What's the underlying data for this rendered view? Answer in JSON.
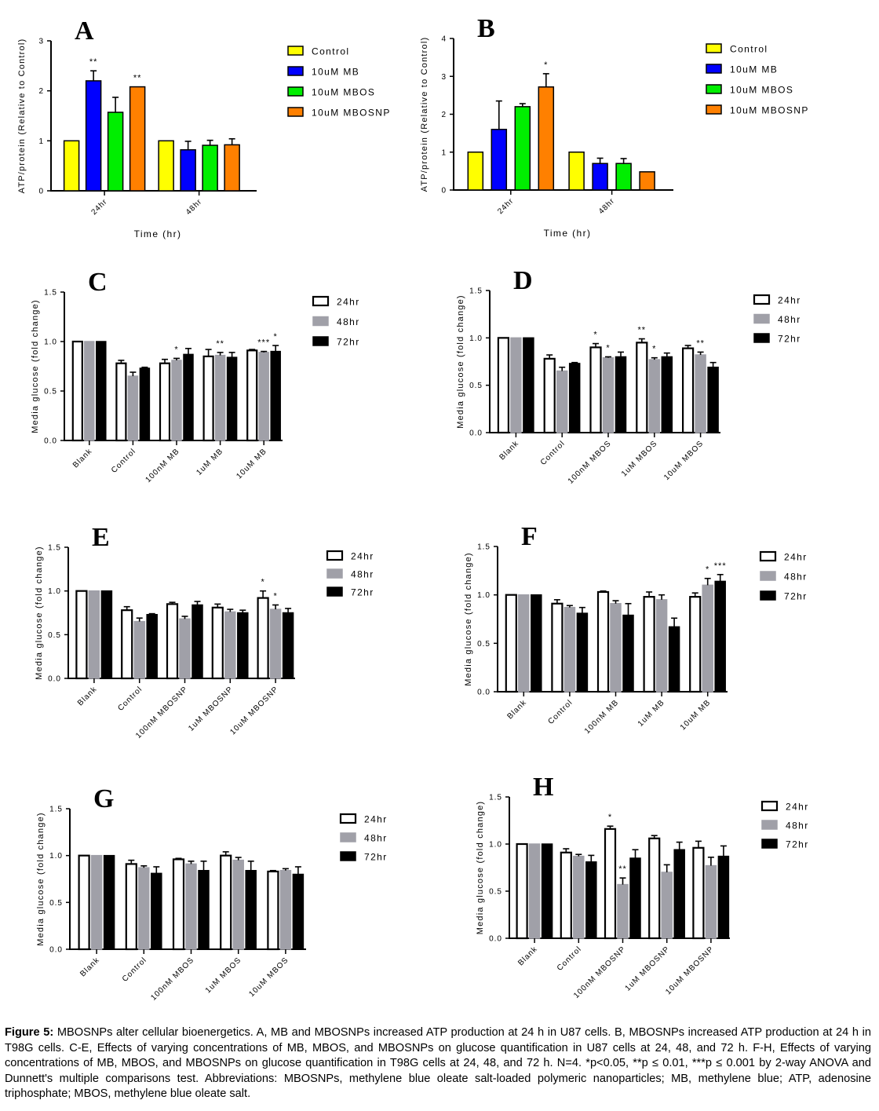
{
  "caption": {
    "label": "Figure 5:",
    "text": " MBOSNPs alter cellular bioenergetics. A, MB and MBOSNPs increased ATP production at 24 h in U87 cells. B, MBOSNPs increased ATP production at 24 h in T98G cells. C-E, Effects of varying concentrations of MB, MBOS, and MBOSNPs on glucose quantification in U87 cells at 24, 48, and 72 h. F-H, Effects of varying concentrations of MB, MBOS, and MBOSNPs on glucose quantification in T98G cells at 24, 48, and 72 h. N=4. *p<0.05, **p ≤ 0.01, ***p ≤ 0.001 by 2-way ANOVA and Dunnett's multiple comparisons test. Abbreviations: MBOSNPs, methylene blue oleate salt-loaded polymeric nanoparticles; MB, methylene blue; ATP, adenosine triphosphate; MBOS, methylene blue oleate salt."
  },
  "chart_data": [
    {
      "panel": "A",
      "type": "bar",
      "title": "",
      "xlabel": "Time (hr)",
      "ylabel": "ATP/protein (Relative to Control)",
      "ylim": [
        0,
        3
      ],
      "yticks": [
        "0",
        "1",
        "2",
        "3"
      ],
      "ytick_values": [
        0,
        1,
        2,
        3
      ],
      "categories": [
        "24hr",
        "48hr"
      ],
      "legend_position": "right",
      "series": [
        {
          "name": "Control",
          "color": "#ffff00",
          "values": [
            1,
            1
          ],
          "errors": [
            0,
            0
          ],
          "stars": [
            "",
            ""
          ]
        },
        {
          "name": "10uM MB",
          "color": "#0000ff",
          "values": [
            2.2,
            0.82
          ],
          "errors": [
            0.2,
            0.17
          ],
          "stars": [
            "**",
            ""
          ]
        },
        {
          "name": "10uM MBOS",
          "color": "#00ee00",
          "values": [
            1.57,
            0.91
          ],
          "errors": [
            0.3,
            0.1
          ],
          "stars": [
            "",
            ""
          ]
        },
        {
          "name": "10uM MBOSNP",
          "color": "#ff8000",
          "values": [
            2.08,
            0.92
          ],
          "errors": [
            0,
            0.12
          ],
          "stars": [
            "**",
            ""
          ]
        }
      ]
    },
    {
      "panel": "B",
      "type": "bar",
      "title": "",
      "xlabel": "Time (hr)",
      "ylabel": "ATP/protein (Relative to Control)",
      "ylim": [
        0,
        4
      ],
      "yticks": [
        "0",
        "1",
        "2",
        "3",
        "4"
      ],
      "ytick_values": [
        0,
        1,
        2,
        3,
        4
      ],
      "categories": [
        "24hr",
        "48hr"
      ],
      "legend_position": "right",
      "series": [
        {
          "name": "Control",
          "color": "#ffff00",
          "values": [
            1,
            1
          ],
          "errors": [
            0,
            0
          ],
          "stars": [
            "",
            ""
          ]
        },
        {
          "name": "10uM MB",
          "color": "#0000ff",
          "values": [
            1.6,
            0.7
          ],
          "errors": [
            0.75,
            0.14
          ],
          "stars": [
            "",
            ""
          ]
        },
        {
          "name": "10uM MBOS",
          "color": "#00ee00",
          "values": [
            2.2,
            0.7
          ],
          "errors": [
            0.08,
            0.13
          ],
          "stars": [
            "",
            ""
          ]
        },
        {
          "name": "10uM MBOSNP",
          "color": "#ff8000",
          "values": [
            2.72,
            0.48
          ],
          "errors": [
            0.35,
            0
          ],
          "stars": [
            "*",
            ""
          ]
        }
      ]
    },
    {
      "panel": "C",
      "type": "bar",
      "title": "",
      "xlabel": "",
      "ylabel": "Media glucose (fold change)",
      "ylim": [
        0,
        1.5
      ],
      "yticks": [
        "0.0",
        "0.5",
        "1.0",
        "1.5"
      ],
      "ytick_values": [
        0,
        0.5,
        1,
        1.5
      ],
      "categories": [
        "Blank",
        "Control",
        "100nM MB",
        "1uM MB",
        "10uM MB"
      ],
      "legend_position": "right",
      "series": [
        {
          "name": "24hr",
          "color": "#ffffff",
          "values": [
            1,
            0.78,
            0.78,
            0.85,
            0.91
          ],
          "errors": [
            0,
            0.03,
            0.04,
            0.07,
            0.01
          ],
          "stars": [
            "",
            "",
            "",
            "",
            ""
          ]
        },
        {
          "name": "48hr",
          "color": "#a0a0a8",
          "values": [
            1,
            0.65,
            0.81,
            0.86,
            0.89
          ],
          "errors": [
            0,
            0.04,
            0.02,
            0.03,
            0.01
          ],
          "stars": [
            "",
            "",
            "*",
            "**",
            "***"
          ]
        },
        {
          "name": "72hr",
          "color": "#000000",
          "values": [
            1,
            0.73,
            0.87,
            0.84,
            0.9
          ],
          "errors": [
            0,
            0.01,
            0.06,
            0.05,
            0.06
          ],
          "stars": [
            "",
            "",
            "",
            "",
            "*"
          ]
        }
      ]
    },
    {
      "panel": "D",
      "type": "bar",
      "title": "",
      "xlabel": "",
      "ylabel": "Media glucose (fold change)",
      "ylim": [
        0,
        1.5
      ],
      "yticks": [
        "0.0",
        "0.5",
        "1.0",
        "1.5"
      ],
      "ytick_values": [
        0,
        0.5,
        1,
        1.5
      ],
      "categories": [
        "Blank",
        "Control",
        "100nM MBOS",
        "1uM MBOS",
        "10uM MBOS"
      ],
      "legend_position": "right",
      "series": [
        {
          "name": "24hr",
          "color": "#ffffff",
          "values": [
            1,
            0.78,
            0.9,
            0.95,
            0.89
          ],
          "errors": [
            0,
            0.04,
            0.04,
            0.04,
            0.03
          ],
          "stars": [
            "",
            "",
            "*",
            "**",
            ""
          ]
        },
        {
          "name": "48hr",
          "color": "#a0a0a8",
          "values": [
            1,
            0.65,
            0.79,
            0.77,
            0.82
          ],
          "errors": [
            0,
            0.04,
            0.01,
            0.02,
            0.03
          ],
          "stars": [
            "",
            "",
            "*",
            "*",
            "**"
          ]
        },
        {
          "name": "72hr",
          "color": "#000000",
          "values": [
            1,
            0.73,
            0.8,
            0.8,
            0.69
          ],
          "errors": [
            0,
            0.01,
            0.05,
            0.04,
            0.05
          ],
          "stars": [
            "",
            "",
            "",
            "",
            ""
          ]
        }
      ]
    },
    {
      "panel": "E",
      "type": "bar",
      "title": "",
      "xlabel": "",
      "ylabel": "Media glucose (fold change)",
      "ylim": [
        0,
        1.5
      ],
      "yticks": [
        "0.0",
        "0.5",
        "1.0",
        "1.5"
      ],
      "ytick_values": [
        0,
        0.5,
        1,
        1.5
      ],
      "categories": [
        "Blank",
        "Control",
        "100nM MBOSNP",
        "1uM MBOSNP",
        "10uM MBOSNP"
      ],
      "legend_position": "right",
      "series": [
        {
          "name": "24hr",
          "color": "#ffffff",
          "values": [
            1,
            0.78,
            0.85,
            0.81,
            0.92
          ],
          "errors": [
            0,
            0.04,
            0.02,
            0.04,
            0.08
          ],
          "stars": [
            "",
            "",
            "",
            "",
            "*"
          ]
        },
        {
          "name": "48hr",
          "color": "#a0a0a8",
          "values": [
            1,
            0.65,
            0.68,
            0.76,
            0.79
          ],
          "errors": [
            0,
            0.04,
            0.03,
            0.03,
            0.05
          ],
          "stars": [
            "",
            "",
            "",
            "",
            "*"
          ]
        },
        {
          "name": "72hr",
          "color": "#000000",
          "values": [
            1,
            0.73,
            0.84,
            0.75,
            0.75
          ],
          "errors": [
            0,
            0.01,
            0.04,
            0.03,
            0.05
          ],
          "stars": [
            "",
            "",
            "",
            "",
            ""
          ]
        }
      ]
    },
    {
      "panel": "F",
      "type": "bar",
      "title": "",
      "xlabel": "",
      "ylabel": "Media glucose (fold change)",
      "ylim": [
        0,
        1.5
      ],
      "yticks": [
        "0.0",
        "0.5",
        "1.0",
        "1.5"
      ],
      "ytick_values": [
        0,
        0.5,
        1,
        1.5
      ],
      "categories": [
        "Blank",
        "Control",
        "100nM MB",
        "1uM MB",
        "10uM MB"
      ],
      "legend_position": "right",
      "series": [
        {
          "name": "24hr",
          "color": "#ffffff",
          "values": [
            1,
            0.91,
            1.03,
            0.98,
            0.98
          ],
          "errors": [
            0,
            0.04,
            0.01,
            0.05,
            0.04
          ],
          "stars": [
            "",
            "",
            "",
            "",
            ""
          ]
        },
        {
          "name": "48hr",
          "color": "#a0a0a8",
          "values": [
            1,
            0.87,
            0.91,
            0.95,
            1.1
          ],
          "errors": [
            0,
            0.02,
            0.03,
            0.05,
            0.07
          ],
          "stars": [
            "",
            "",
            "",
            "",
            "*"
          ]
        },
        {
          "name": "72hr",
          "color": "#000000",
          "values": [
            1,
            0.81,
            0.79,
            0.67,
            1.14
          ],
          "errors": [
            0,
            0.06,
            0.12,
            0.09,
            0.07
          ],
          "stars": [
            "",
            "",
            "",
            "",
            "***"
          ]
        }
      ]
    },
    {
      "panel": "G",
      "type": "bar",
      "title": "",
      "xlabel": "",
      "ylabel": "Media glucose (fold change)",
      "ylim": [
        0,
        1.5
      ],
      "yticks": [
        "0.0",
        "0.5",
        "1.0",
        "1.5"
      ],
      "ytick_values": [
        0,
        0.5,
        1,
        1.5
      ],
      "categories": [
        "Blank",
        "Control",
        "100nM MBOS",
        "1uM MBOS",
        "10uM MBOS"
      ],
      "legend_position": "right",
      "series": [
        {
          "name": "24hr",
          "color": "#ffffff",
          "values": [
            1,
            0.91,
            0.96,
            1.0,
            0.83
          ],
          "errors": [
            0,
            0.04,
            0.01,
            0.04,
            0.01
          ],
          "stars": [
            "",
            "",
            "",
            "",
            ""
          ]
        },
        {
          "name": "48hr",
          "color": "#a0a0a8",
          "values": [
            1,
            0.87,
            0.91,
            0.95,
            0.84
          ],
          "errors": [
            0,
            0.02,
            0.03,
            0.03,
            0.02
          ],
          "stars": [
            "",
            "",
            "",
            "",
            ""
          ]
        },
        {
          "name": "72hr",
          "color": "#000000",
          "values": [
            1,
            0.81,
            0.84,
            0.84,
            0.8
          ],
          "errors": [
            0,
            0.07,
            0.1,
            0.1,
            0.08
          ],
          "stars": [
            "",
            "",
            "",
            "",
            ""
          ]
        }
      ]
    },
    {
      "panel": "H",
      "type": "bar",
      "title": "",
      "xlabel": "",
      "ylabel": "Media glucose (fold change)",
      "ylim": [
        0,
        1.5
      ],
      "yticks": [
        "0.0",
        "0.5",
        "1.0",
        "1.5"
      ],
      "ytick_values": [
        0,
        0.5,
        1,
        1.5
      ],
      "categories": [
        "Blank",
        "Control",
        "100nM MBOSNP",
        "1uM MBOSNP",
        "10uM MBOSNP"
      ],
      "legend_position": "right",
      "series": [
        {
          "name": "24hr",
          "color": "#ffffff",
          "values": [
            1,
            0.91,
            1.16,
            1.06,
            0.96
          ],
          "errors": [
            0,
            0.04,
            0.03,
            0.03,
            0.07
          ],
          "stars": [
            "",
            "",
            "*",
            "",
            ""
          ]
        },
        {
          "name": "48hr",
          "color": "#a0a0a8",
          "values": [
            1,
            0.87,
            0.57,
            0.7,
            0.77
          ],
          "errors": [
            0,
            0.02,
            0.07,
            0.08,
            0.09
          ],
          "stars": [
            "",
            "",
            "**",
            "",
            ""
          ]
        },
        {
          "name": "72hr",
          "color": "#000000",
          "values": [
            1,
            0.81,
            0.85,
            0.94,
            0.87
          ],
          "errors": [
            0,
            0.07,
            0.09,
            0.08,
            0.11
          ],
          "stars": [
            "",
            "",
            "",
            "",
            ""
          ]
        }
      ]
    }
  ]
}
